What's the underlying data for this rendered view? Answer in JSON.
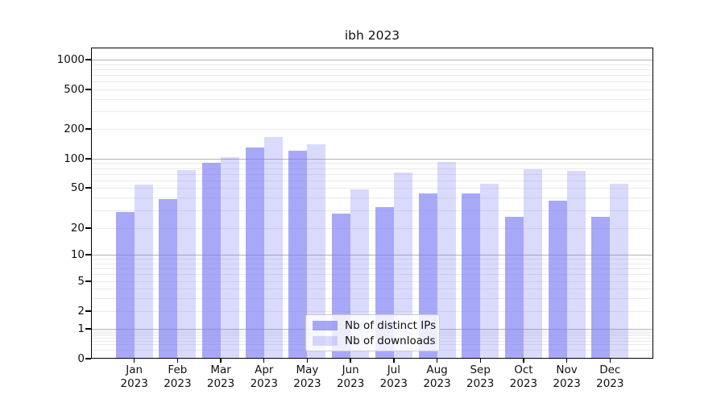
{
  "title": "ibh 2023",
  "chart_data": {
    "type": "bar",
    "title": "ibh 2023",
    "categories": [
      "Jan 2023",
      "Feb 2023",
      "Mar 2023",
      "Apr 2023",
      "May 2023",
      "Jun 2023",
      "Jul 2023",
      "Aug 2023",
      "Sep 2023",
      "Oct 2023",
      "Nov 2023",
      "Dec 2023"
    ],
    "x_tick_lines": [
      {
        "month": "Jan",
        "year": "2023"
      },
      {
        "month": "Feb",
        "year": "2023"
      },
      {
        "month": "Mar",
        "year": "2023"
      },
      {
        "month": "Apr",
        "year": "2023"
      },
      {
        "month": "May",
        "year": "2023"
      },
      {
        "month": "Jun",
        "year": "2023"
      },
      {
        "month": "Jul",
        "year": "2023"
      },
      {
        "month": "Aug",
        "year": "2023"
      },
      {
        "month": "Sep",
        "year": "2023"
      },
      {
        "month": "Oct",
        "year": "2023"
      },
      {
        "month": "Nov",
        "year": "2023"
      },
      {
        "month": "Dec",
        "year": "2023"
      }
    ],
    "series": [
      {
        "name": "Nb of distinct IPs",
        "color": "#7b7bf5",
        "alpha": 0.66,
        "values": [
          29,
          39,
          90,
          130,
          121,
          28,
          32,
          44,
          44,
          26,
          37,
          26
        ]
      },
      {
        "name": "Nb of downloads",
        "color": "#7b7bf5",
        "alpha": 0.28,
        "values": [
          54,
          76,
          103,
          165,
          140,
          48,
          72,
          93,
          55,
          78,
          75,
          55
        ]
      }
    ],
    "yscale": "log",
    "y_ticks": [
      0,
      1,
      2,
      5,
      10,
      20,
      50,
      100,
      200,
      500,
      1000
    ],
    "ylim": [
      0,
      1300
    ],
    "grid": "major and minor horizontal",
    "legend_position": "lower center"
  },
  "colors": {
    "bar_base": "#7b7bf5",
    "grid_major": "#b2b2b2",
    "grid_minor": "#eaeaea",
    "spine": "#000000"
  }
}
